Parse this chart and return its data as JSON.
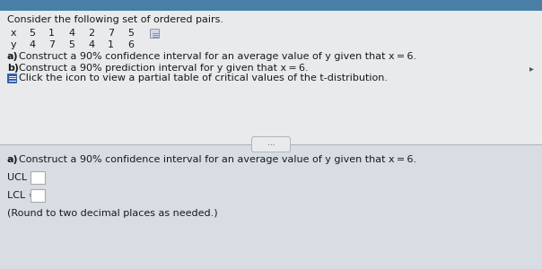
{
  "bg_blue_strip": "#4a7fa5",
  "bg_upper": "#e8eaec",
  "bg_lower": "#d8dde4",
  "title": "Consider the following set of ordered pairs.",
  "x_label": "x",
  "x_vals": [
    "5",
    "1",
    "4",
    "2",
    "7",
    "5"
  ],
  "y_label": "y",
  "y_vals": [
    "4",
    "7",
    "5",
    "4",
    "1",
    "6"
  ],
  "part_a_bold": "a)",
  "part_a_text": "Construct a 90% confidence interval for an average value of y given that x = 6.",
  "part_b_bold": "b)",
  "part_b_text": "Construct a 90% prediction interval for y given that x = 6.",
  "click_text": "Click the icon to view a partial table of critical values of the t-distribution.",
  "divider_color": "#b0b5bc",
  "section2_bold": "a)",
  "section2_text": "Construct a 90% confidence interval for an average value of y given that x = 6.",
  "ucl_label": "UCL = ",
  "lcl_label": "LCL = ",
  "round_note": "(Round to two decimal places as needed.)",
  "box_color": "#ffffff",
  "box_border": "#aaaaaa",
  "text_color": "#1a1a1a",
  "icon_color": "#2a5db0",
  "icon_border": "#1a4a99",
  "ellipsis_fill": "#e8eaec",
  "ellipsis_border": "#b0b5bc"
}
